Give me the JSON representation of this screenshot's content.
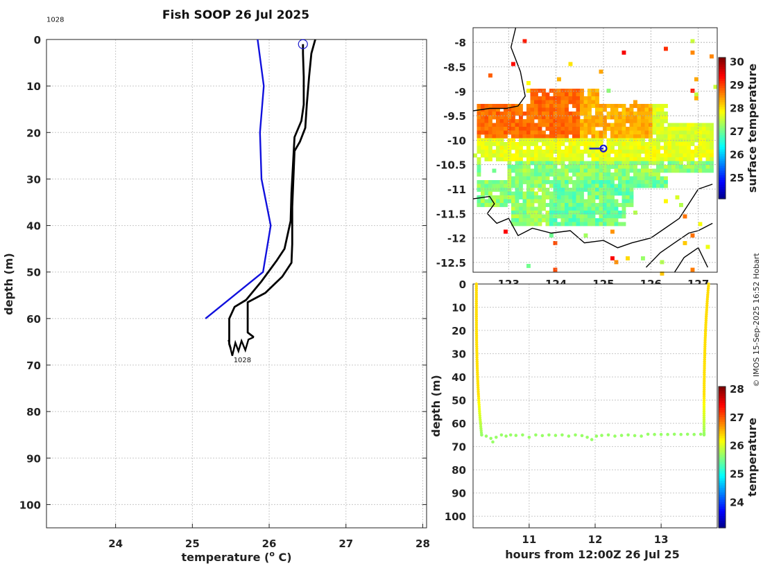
{
  "title": "Fish SOOP 26 Jul 2025",
  "credit": "© IMOS 15-Sep-2025 16:52 Hobart",
  "colors": {
    "profile_line": "#000000",
    "climatology_line": "#1010dd",
    "marker": "#1a1acc",
    "grid": "#c8c8c8"
  },
  "chart_data": [
    {
      "id": "profile",
      "type": "line",
      "xlabel": "temperature (",
      "xlabel_sup": "o",
      "xlabel_tail": " C)",
      "ylabel": "depth (m)",
      "xlim": [
        23.1,
        28.05
      ],
      "ylim": [
        0,
        105
      ],
      "xticks": [
        24,
        25,
        26,
        27,
        28
      ],
      "yticks": [
        0,
        10,
        20,
        30,
        40,
        50,
        60,
        70,
        80,
        90,
        100
      ],
      "annotations": [
        {
          "text": "1028",
          "x": 23.1,
          "y": -2
        },
        {
          "text": "1028",
          "x": 25.5,
          "y": 68.5
        }
      ],
      "marker": {
        "type": "circle",
        "x": 26.44,
        "y": 1
      },
      "series": [
        {
          "name": "climatology",
          "color": "blue",
          "points": [
            [
              25.85,
              0
            ],
            [
              25.93,
              10
            ],
            [
              25.88,
              20
            ],
            [
              25.9,
              30
            ],
            [
              26.02,
              40
            ],
            [
              25.92,
              50
            ],
            [
              25.17,
              60
            ]
          ]
        },
        {
          "name": "cast down",
          "color": "black",
          "points": [
            [
              26.6,
              0
            ],
            [
              26.55,
              3
            ],
            [
              26.52,
              8
            ],
            [
              26.49,
              14
            ],
            [
              26.47,
              19
            ],
            [
              26.4,
              22
            ],
            [
              26.33,
              24
            ],
            [
              26.32,
              28
            ],
            [
              26.31,
              32
            ],
            [
              26.3,
              36
            ],
            [
              26.3,
              44
            ],
            [
              26.29,
              48
            ],
            [
              26.17,
              51
            ],
            [
              25.95,
              54.5
            ],
            [
              25.72,
              56.5
            ],
            [
              25.72,
              60
            ],
            [
              25.72,
              63
            ],
            [
              25.8,
              64
            ]
          ]
        },
        {
          "name": "cast up",
          "color": "black",
          "points": [
            [
              25.5,
              66.5
            ],
            [
              25.48,
              65.5
            ],
            [
              25.48,
              62
            ],
            [
              25.48,
              60
            ],
            [
              25.55,
              57.5
            ],
            [
              25.7,
              56
            ],
            [
              25.9,
              52
            ],
            [
              26.1,
              47.5
            ],
            [
              26.2,
              45
            ],
            [
              26.28,
              39
            ],
            [
              26.29,
              33
            ],
            [
              26.31,
              27
            ],
            [
              26.33,
              21
            ],
            [
              26.42,
              17.5
            ],
            [
              26.45,
              14
            ],
            [
              26.45,
              8
            ],
            [
              26.44,
              3
            ],
            [
              26.44,
              1
            ]
          ]
        }
      ]
    },
    {
      "id": "sst_map",
      "type": "heatmap",
      "colorbar_label": "surface temperature",
      "colorbar_ticks": [
        25,
        26,
        27,
        28,
        29,
        30
      ],
      "clim": [
        24.1,
        30.2
      ],
      "xlim": [
        122.25,
        127.4
      ],
      "ylim": [
        -12.7,
        -7.7
      ],
      "xticks": [
        123,
        124,
        125,
        126,
        127
      ],
      "yticks": [
        -8,
        -8.5,
        -9,
        -9.5,
        -10,
        -10.5,
        -11,
        -11.5,
        -12,
        -12.5
      ],
      "ytick_labels": [
        "-8",
        "-8.5",
        "-9",
        "-9.5",
        "-10",
        "-10.5",
        "-11",
        "-11.5",
        "-12",
        "-12.5"
      ],
      "ship_track": [
        [
          124.7,
          -10.17
        ],
        [
          125.0,
          -10.17
        ]
      ],
      "ship_position": [
        125.0,
        -10.17
      ]
    },
    {
      "id": "depth_time",
      "type": "scatter",
      "xlabel": "hours from 12:00Z 26 Jul 25",
      "ylabel": "depth (m)",
      "colorbar_label": "temperature",
      "colorbar_ticks": [
        24,
        25,
        26,
        27,
        28
      ],
      "clim": [
        23.1,
        28.1
      ],
      "xlim": [
        10.15,
        13.85
      ],
      "ylim": [
        0,
        105
      ],
      "xticks": [
        11,
        12,
        13
      ],
      "yticks": [
        0,
        10,
        20,
        30,
        40,
        50,
        60,
        70,
        80,
        90,
        100
      ],
      "descent": {
        "t": [
          10.2,
          10.28
        ],
        "depth": [
          0,
          65
        ],
        "temp_surface": 26.4,
        "temp_bottom": 25.72
      },
      "ascent": {
        "t": [
          13.65,
          13.72
        ],
        "depth": [
          65,
          0
        ],
        "temp_surface": 26.4,
        "temp_bottom": 25.72
      },
      "bottom_track": [
        [
          10.28,
          65
        ],
        [
          10.35,
          65.5
        ],
        [
          10.42,
          66.5
        ],
        [
          10.45,
          68
        ],
        [
          10.5,
          66
        ],
        [
          10.58,
          65
        ],
        [
          10.65,
          65.5
        ],
        [
          10.72,
          65
        ],
        [
          10.8,
          65.2
        ],
        [
          10.9,
          65
        ],
        [
          11.0,
          66
        ],
        [
          11.1,
          65
        ],
        [
          11.2,
          65.3
        ],
        [
          11.3,
          65
        ],
        [
          11.4,
          65.2
        ],
        [
          11.5,
          65
        ],
        [
          11.6,
          65.5
        ],
        [
          11.7,
          65
        ],
        [
          11.8,
          65.3
        ],
        [
          11.88,
          66
        ],
        [
          11.95,
          67
        ],
        [
          12.02,
          65.5
        ],
        [
          12.1,
          65.2
        ],
        [
          12.2,
          65
        ],
        [
          12.3,
          65.5
        ],
        [
          12.4,
          65.2
        ],
        [
          12.5,
          65
        ],
        [
          12.6,
          65.3
        ],
        [
          12.7,
          65.5
        ],
        [
          12.8,
          64.7
        ],
        [
          12.9,
          64.8
        ],
        [
          13.0,
          64.8
        ],
        [
          13.1,
          64.8
        ],
        [
          13.2,
          64.7
        ],
        [
          13.3,
          64.8
        ],
        [
          13.4,
          64.7
        ],
        [
          13.5,
          64.8
        ],
        [
          13.6,
          64.7
        ],
        [
          13.65,
          64.7
        ]
      ],
      "bottom_temp": 25.72
    }
  ]
}
